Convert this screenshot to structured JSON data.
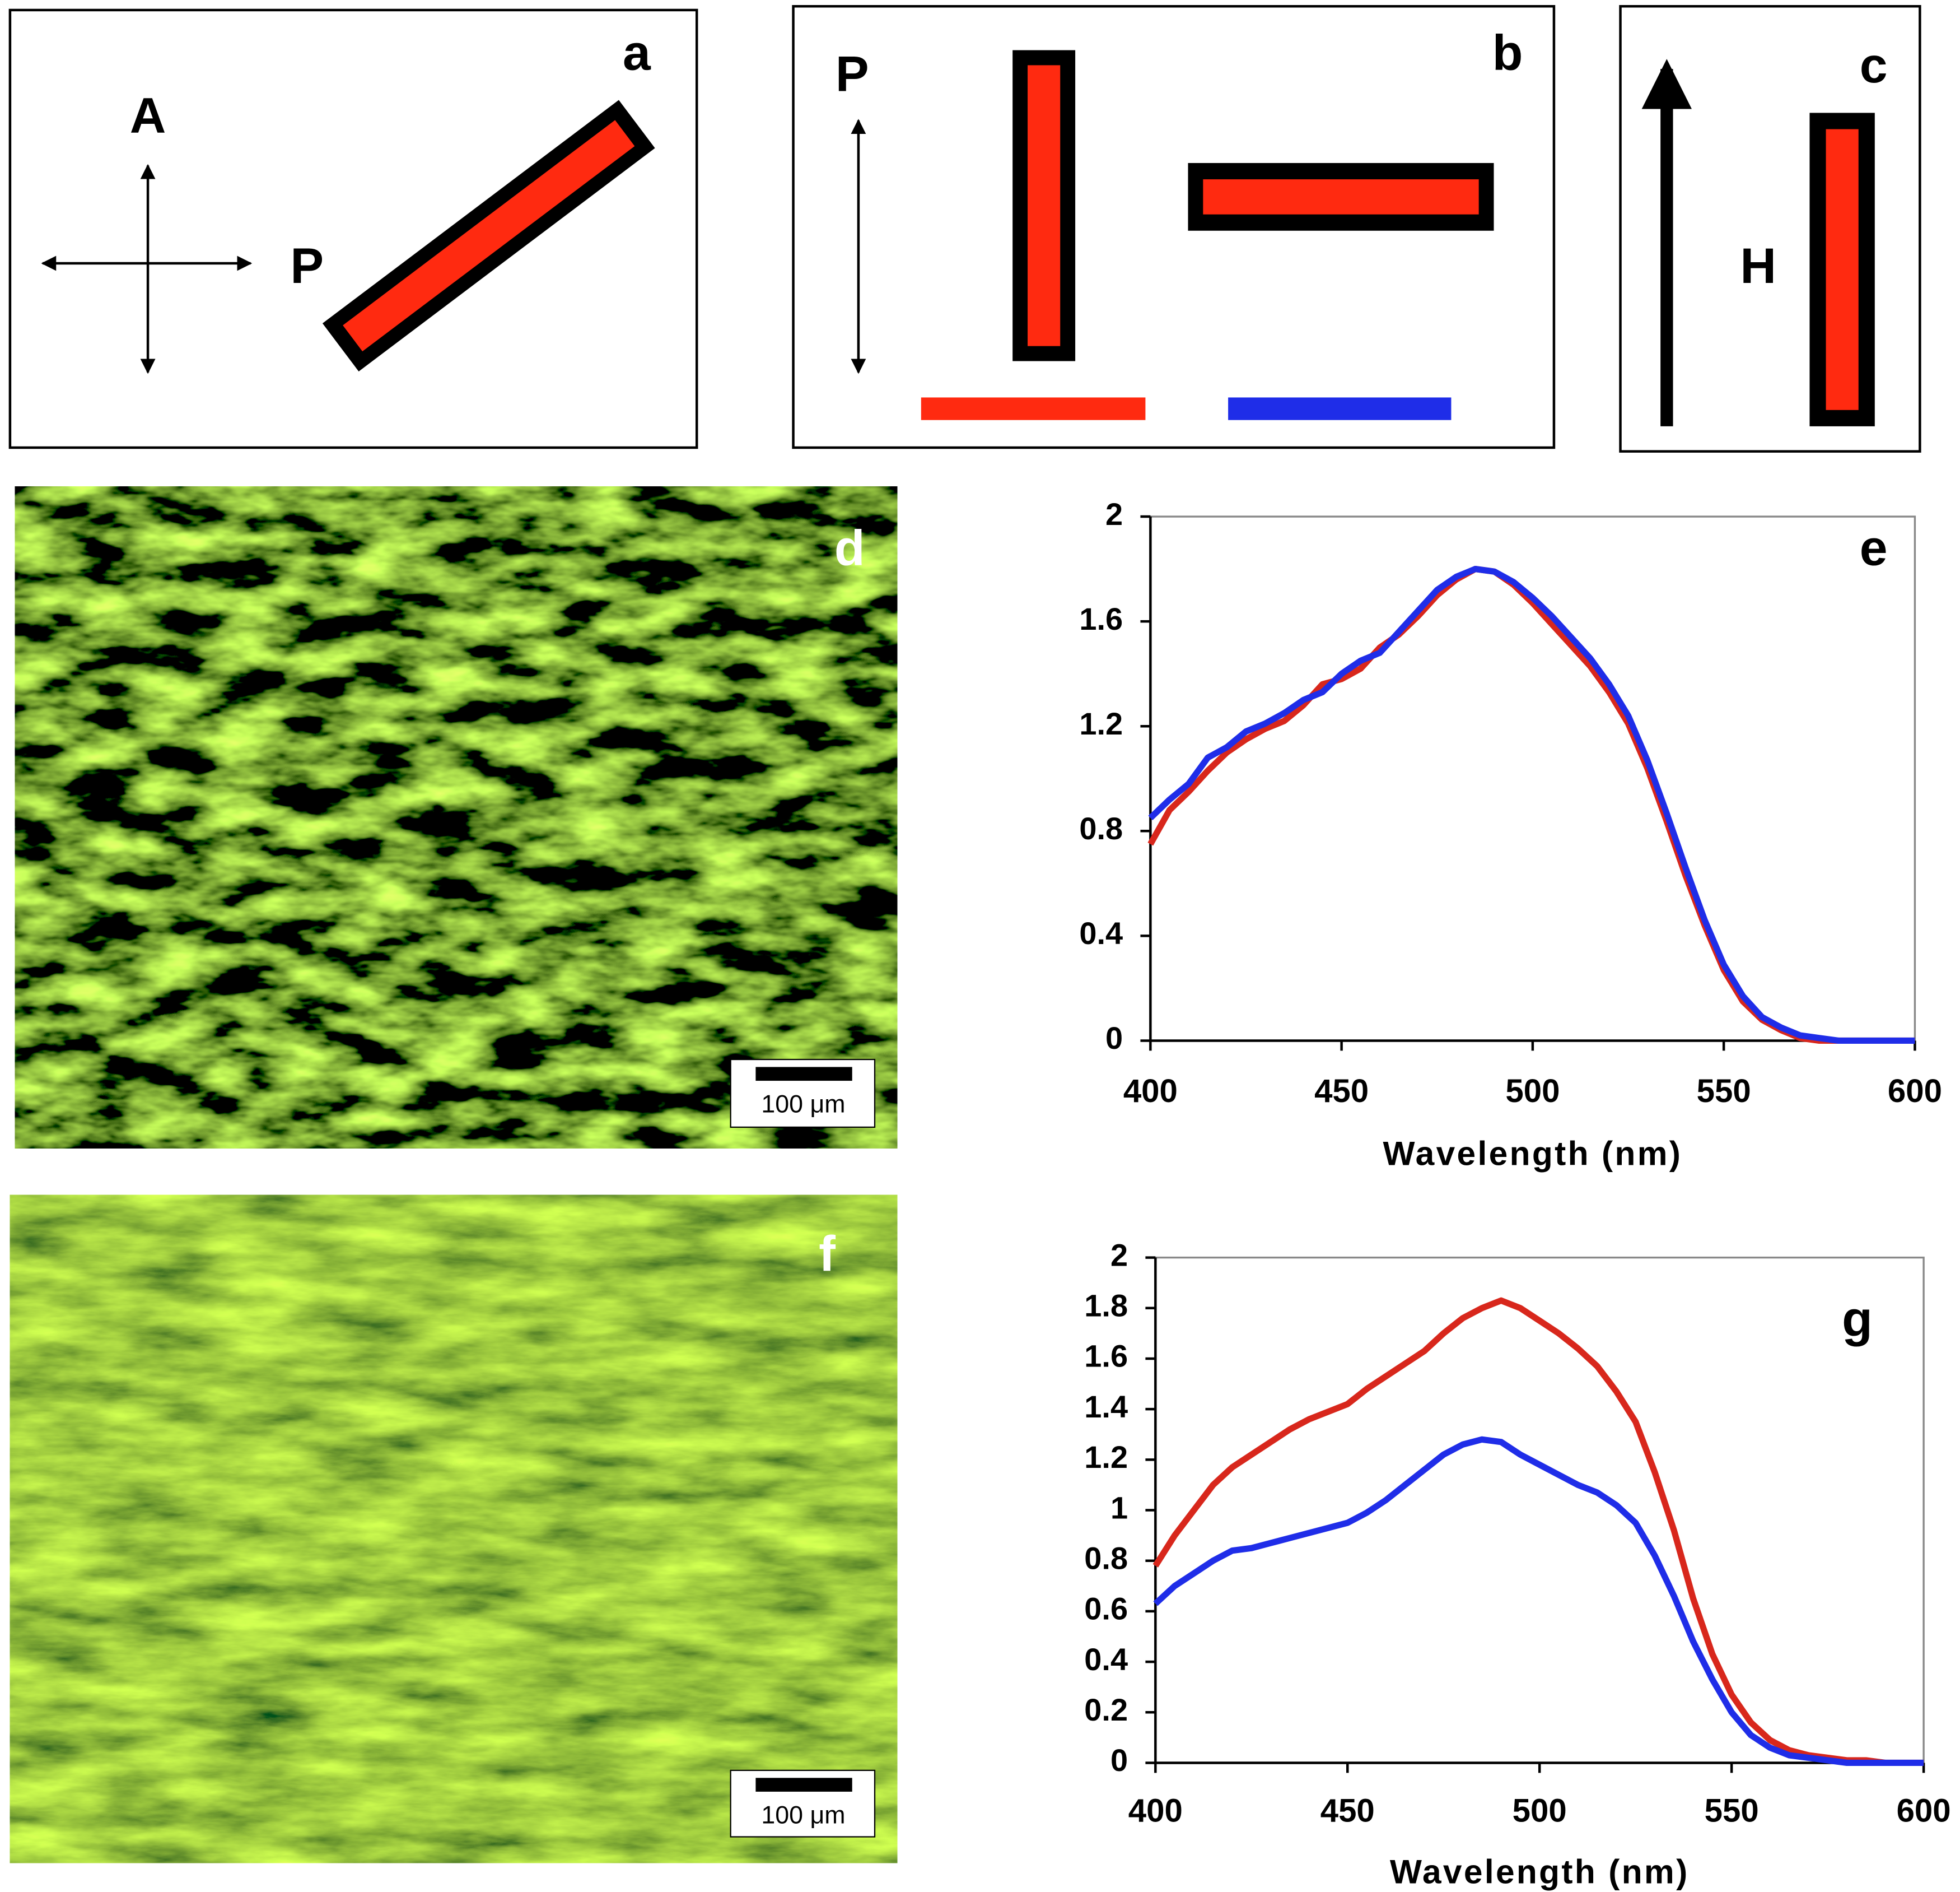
{
  "panels": {
    "a": {
      "label": "a",
      "analyzer": "A",
      "polarizer": "P"
    },
    "b": {
      "label": "b",
      "polarizer": "P"
    },
    "c": {
      "label": "c",
      "field": "H"
    },
    "d": {
      "label": "d",
      "scale_bar": "100 μm"
    },
    "f": {
      "label": "f",
      "scale_bar": "100 μm"
    }
  },
  "chart_data": [
    {
      "type": "line",
      "annotation": "e",
      "x_label": "Wavelength (nm)",
      "x": [
        400,
        405,
        410,
        415,
        420,
        425,
        430,
        435,
        440,
        445,
        450,
        455,
        460,
        465,
        470,
        475,
        480,
        485,
        490,
        495,
        500,
        505,
        510,
        515,
        520,
        525,
        530,
        535,
        540,
        545,
        550,
        555,
        560,
        565,
        570,
        575,
        580,
        585,
        590,
        595,
        600
      ],
      "series": [
        {
          "color": "#d8271c",
          "values": [
            0.75,
            0.88,
            0.95,
            1.03,
            1.1,
            1.15,
            1.19,
            1.22,
            1.28,
            1.36,
            1.38,
            1.42,
            1.5,
            1.55,
            1.62,
            1.7,
            1.76,
            1.8,
            1.79,
            1.74,
            1.67,
            1.59,
            1.51,
            1.43,
            1.33,
            1.21,
            1.04,
            0.84,
            0.63,
            0.44,
            0.27,
            0.15,
            0.08,
            0.04,
            0.01,
            0,
            0,
            0,
            0,
            0,
            0
          ]
        },
        {
          "color": "#1f2de8",
          "values": [
            0.85,
            0.92,
            0.98,
            1.08,
            1.12,
            1.18,
            1.21,
            1.25,
            1.3,
            1.33,
            1.4,
            1.45,
            1.48,
            1.56,
            1.64,
            1.72,
            1.77,
            1.8,
            1.79,
            1.75,
            1.69,
            1.62,
            1.54,
            1.46,
            1.36,
            1.24,
            1.07,
            0.87,
            0.66,
            0.46,
            0.29,
            0.17,
            0.09,
            0.05,
            0.02,
            0.01,
            0,
            0,
            0,
            0,
            0
          ]
        }
      ],
      "xlim": [
        400,
        600
      ],
      "xticks": [
        400,
        450,
        500,
        550,
        600
      ],
      "ylim": [
        0,
        2
      ],
      "yticks": [
        0,
        0.4,
        0.8,
        1.2,
        1.6,
        2
      ]
    },
    {
      "type": "line",
      "annotation": "g",
      "x_label": "Wavelength (nm)",
      "x": [
        400,
        405,
        410,
        415,
        420,
        425,
        430,
        435,
        440,
        445,
        450,
        455,
        460,
        465,
        470,
        475,
        480,
        485,
        490,
        495,
        500,
        505,
        510,
        515,
        520,
        525,
        530,
        535,
        540,
        545,
        550,
        555,
        560,
        565,
        570,
        575,
        580,
        585,
        590,
        595,
        600
      ],
      "series": [
        {
          "color": "#d8271c",
          "values": [
            0.78,
            0.9,
            1.0,
            1.1,
            1.17,
            1.22,
            1.27,
            1.32,
            1.36,
            1.39,
            1.42,
            1.48,
            1.53,
            1.58,
            1.63,
            1.7,
            1.76,
            1.8,
            1.83,
            1.8,
            1.75,
            1.7,
            1.64,
            1.57,
            1.47,
            1.35,
            1.15,
            0.92,
            0.65,
            0.43,
            0.27,
            0.16,
            0.09,
            0.05,
            0.03,
            0.02,
            0.01,
            0.01,
            0,
            0,
            0
          ]
        },
        {
          "color": "#1f2de8",
          "values": [
            0.63,
            0.7,
            0.75,
            0.8,
            0.84,
            0.85,
            0.87,
            0.89,
            0.91,
            0.93,
            0.95,
            0.99,
            1.04,
            1.1,
            1.16,
            1.22,
            1.26,
            1.28,
            1.27,
            1.22,
            1.18,
            1.14,
            1.1,
            1.07,
            1.02,
            0.95,
            0.82,
            0.66,
            0.48,
            0.33,
            0.2,
            0.11,
            0.06,
            0.03,
            0.02,
            0.01,
            0,
            0,
            0,
            0,
            0
          ]
        }
      ],
      "xlim": [
        400,
        600
      ],
      "xticks": [
        400,
        450,
        500,
        550,
        600
      ],
      "ylim": [
        0,
        2
      ],
      "yticks": [
        0,
        0.2,
        0.4,
        0.6,
        0.8,
        1,
        1.2,
        1.4,
        1.6,
        1.8,
        2
      ]
    }
  ]
}
